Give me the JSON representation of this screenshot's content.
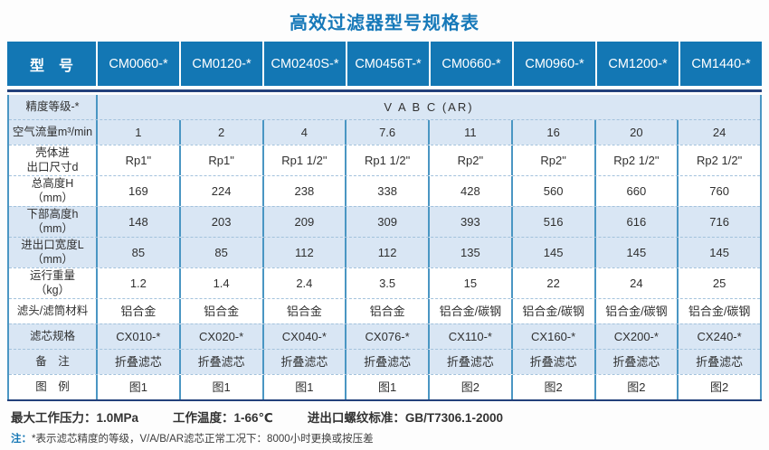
{
  "title": "高效过滤器型号规格表",
  "table": {
    "header": [
      "型　号",
      "CM0060-*",
      "CM0120-*",
      "CM0240S-*",
      "CM0456T-*",
      "CM0660-*",
      "CM0960-*",
      "CM1200-*",
      "CM1440-*"
    ],
    "rows": [
      {
        "label": "精度等级-*",
        "merged": "V A B C (AR)"
      },
      {
        "label": "空气流量m³/min",
        "values": [
          "1",
          "2",
          "4",
          "7.6",
          "11",
          "16",
          "20",
          "24"
        ]
      },
      {
        "label": "壳体进\n出口尺寸d",
        "values": [
          "Rp1\"",
          "Rp1\"",
          "Rp1 1/2\"",
          "Rp1 1/2\"",
          "Rp2\"",
          "Rp2\"",
          "Rp2 1/2\"",
          "Rp2 1/2\""
        ]
      },
      {
        "label": "总高度H\n（mm）",
        "values": [
          "169",
          "224",
          "238",
          "338",
          "428",
          "560",
          "660",
          "760"
        ]
      },
      {
        "label": "下部高度h\n（mm）",
        "values": [
          "148",
          "203",
          "209",
          "309",
          "393",
          "516",
          "616",
          "716"
        ]
      },
      {
        "label": "进出口宽度L\n（mm）",
        "values": [
          "85",
          "85",
          "112",
          "112",
          "135",
          "145",
          "145",
          "145"
        ]
      },
      {
        "label": "运行重量\n（kg）",
        "values": [
          "1.2",
          "1.4",
          "2.4",
          "3.5",
          "15",
          "22",
          "24",
          "25"
        ]
      },
      {
        "label": "滤头/滤筒材料",
        "values": [
          "铝合金",
          "铝合金",
          "铝合金",
          "铝合金",
          "铝合金/碳钢",
          "铝合金/碳钢",
          "铝合金/碳钢",
          "铝合金/碳钢"
        ]
      },
      {
        "label": "滤芯规格",
        "values": [
          "CX010-*",
          "CX020-*",
          "CX040-*",
          "CX076-*",
          "CX110-*",
          "CX160-*",
          "CX200-*",
          "CX240-*"
        ]
      },
      {
        "label": "备　注",
        "values": [
          "折叠滤芯",
          "折叠滤芯",
          "折叠滤芯",
          "折叠滤芯",
          "折叠滤芯",
          "折叠滤芯",
          "折叠滤芯",
          "折叠滤芯"
        ]
      },
      {
        "label": "图　例",
        "values": [
          "图1",
          "图1",
          "图1",
          "图1",
          "图2",
          "图2",
          "图2",
          "图2"
        ]
      }
    ]
  },
  "footer": {
    "specs": [
      "最大工作压力：1.0MPa",
      "工作温度：1-66℃",
      "进出口螺纹标准：GB/T7306.1-2000"
    ],
    "note_label": "注：",
    "note_text": "*表示滤芯精度的等级，V/A/B/AR滤芯正常工况下：8000小时更换或按压差"
  },
  "colors": {
    "header_bg": "#1377b4",
    "title_text": "#1779b9",
    "navy_divider": "#23417b",
    "row_light_blue": "#d9e6f4",
    "row_white": "#ffffff",
    "column_divider": "#4a96c3",
    "row_divider_dashed": "#a3c2dc",
    "body_text": "#303030",
    "note_accent": "#1577b5"
  }
}
